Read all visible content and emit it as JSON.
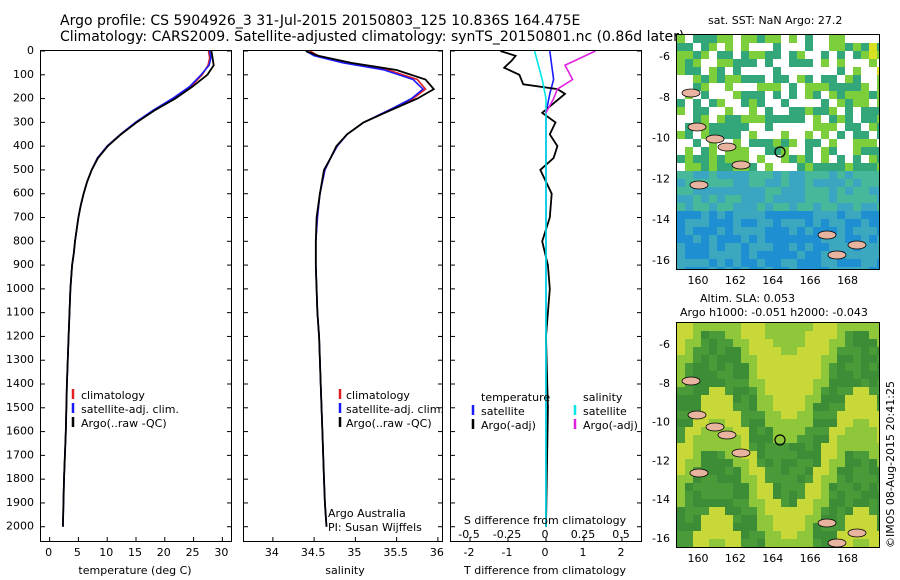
{
  "title": {
    "line1": "Argo profile: CS 5904926_3 31-Jul-2015 20150803_125 10.836S 164.475E",
    "line2": "Climatology: CARS2009. Satellite-adjusted climatology: synTS_20150801.nc (0.86d later)"
  },
  "colors": {
    "climatology": "#e02020",
    "satellite": "#1a1aff",
    "argo": "#000000",
    "sal_sat": "#00e5e5",
    "sal_argo": "#e020e0"
  },
  "depth_axis": {
    "ticks": [
      0,
      100,
      200,
      300,
      400,
      500,
      600,
      700,
      800,
      900,
      1000,
      1100,
      1200,
      1300,
      1400,
      1500,
      1600,
      1700,
      1800,
      1900,
      2000
    ],
    "range": [
      0,
      2060
    ]
  },
  "chart_data": [
    {
      "type": "line",
      "xlabel": "temperature (deg C)",
      "ylabel": "",
      "xlim": [
        -1.5,
        31.5
      ],
      "xticks": [
        "0",
        "5",
        "10",
        "15",
        "20",
        "25",
        "30"
      ],
      "series": [
        {
          "name": "climatology",
          "color": "#e02020",
          "x": [
            27.6,
            27.8,
            27.5,
            26.5,
            24.5,
            21.5,
            18,
            15,
            12.3,
            10,
            8.3,
            7.3,
            6.5,
            5.9,
            5.4,
            5,
            4.7,
            4.4,
            4.2,
            3.9,
            3.6,
            3.3,
            3,
            2.8,
            2.5,
            2.3
          ],
          "y": [
            0,
            30,
            60,
            100,
            150,
            200,
            250,
            300,
            350,
            400,
            450,
            500,
            550,
            600,
            650,
            700,
            750,
            800,
            850,
            900,
            1000,
            1200,
            1400,
            1600,
            1800,
            2000
          ]
        },
        {
          "name": "satellite-adj. clim.",
          "color": "#1a1aff",
          "x": [
            27.8,
            28,
            27.7,
            26.3,
            24.3,
            21.3,
            17.9,
            14.9,
            12.3,
            10,
            8.3,
            7.3,
            6.5,
            5.9,
            5.4,
            5,
            4.7,
            4.4,
            4.2,
            3.9,
            3.6,
            3.3,
            3,
            2.8,
            2.5,
            2.3
          ],
          "y": [
            0,
            30,
            60,
            100,
            150,
            200,
            250,
            300,
            350,
            400,
            450,
            500,
            550,
            600,
            650,
            700,
            750,
            800,
            850,
            900,
            1000,
            1200,
            1400,
            1600,
            1800,
            2000
          ]
        },
        {
          "name": "Argo(..raw -QC)",
          "color": "#000000",
          "x": [
            28.1,
            28.3,
            28.5,
            27.4,
            24.8,
            21.8,
            18.2,
            15.1,
            12.4,
            10.1,
            8.4,
            7.3,
            6.5,
            5.9,
            5.4,
            5,
            4.7,
            4.4,
            4.2,
            3.9,
            3.6,
            3.3,
            3,
            2.8,
            2.5,
            2.3
          ],
          "y": [
            0,
            30,
            60,
            100,
            150,
            200,
            250,
            300,
            350,
            400,
            450,
            500,
            550,
            600,
            650,
            700,
            750,
            800,
            850,
            900,
            1000,
            1200,
            1400,
            1600,
            1800,
            2000
          ]
        }
      ]
    },
    {
      "type": "line",
      "xlabel": "salinity",
      "ylabel": "",
      "xlim": [
        33.65,
        36.05
      ],
      "xticks": [
        "34",
        "34.5",
        "35",
        "35.5",
        "36"
      ],
      "series": [
        {
          "name": "climatology",
          "color": "#e02020",
          "x": [
            34.45,
            34.55,
            34.9,
            35.4,
            35.75,
            35.85,
            35.7,
            35.4,
            35.1,
            34.9,
            34.78,
            34.7,
            34.63,
            34.57,
            34.54,
            34.52,
            34.52,
            34.53,
            34.54,
            34.56,
            34.58,
            34.6,
            34.62,
            34.63,
            34.65
          ],
          "y": [
            0,
            20,
            50,
            80,
            120,
            160,
            200,
            250,
            300,
            350,
            400,
            450,
            500,
            600,
            700,
            800,
            900,
            1000,
            1100,
            1200,
            1400,
            1600,
            1800,
            1900,
            2000
          ]
        },
        {
          "name": "satellite-adj. clim.",
          "color": "#1a1aff",
          "x": [
            34.4,
            34.5,
            34.85,
            35.35,
            35.7,
            35.82,
            35.68,
            35.4,
            35.1,
            34.9,
            34.78,
            34.7,
            34.63,
            34.57,
            34.54,
            34.52,
            34.52,
            34.53,
            34.54,
            34.56,
            34.58,
            34.6,
            34.62,
            34.63,
            34.65
          ],
          "y": [
            0,
            20,
            50,
            80,
            120,
            160,
            200,
            250,
            300,
            350,
            400,
            450,
            500,
            600,
            700,
            800,
            900,
            1000,
            1100,
            1200,
            1400,
            1600,
            1800,
            1900,
            2000
          ]
        },
        {
          "name": "Argo(..raw -QC)",
          "color": "#000000",
          "x": [
            34.4,
            34.55,
            34.95,
            35.5,
            35.85,
            35.95,
            35.75,
            35.42,
            35.1,
            34.9,
            34.77,
            34.7,
            34.62,
            34.57,
            34.53,
            34.52,
            34.52,
            34.53,
            34.54,
            34.56,
            34.58,
            34.6,
            34.62,
            34.63,
            34.65
          ],
          "y": [
            0,
            20,
            50,
            80,
            120,
            160,
            200,
            250,
            300,
            350,
            400,
            450,
            500,
            600,
            700,
            800,
            900,
            1000,
            1100,
            1200,
            1400,
            1600,
            1800,
            1900,
            2000
          ]
        }
      ],
      "annotations": [
        "Argo Australia",
        "PI: Susan Wijffels"
      ]
    },
    {
      "type": "line",
      "xlabel": "T difference from climatology",
      "xlabel_top": "S difference from climatology",
      "xlim": [
        -2.5,
        2.5
      ],
      "xticks": [
        "-2",
        "-1",
        "0",
        "1",
        "2"
      ],
      "s_ticks": [
        "-0.5",
        "-0.25",
        "0",
        "0.25",
        "0.5"
      ],
      "series": [
        {
          "name": "satellite",
          "group": "temperature",
          "color": "#1a1aff",
          "x": [
            0.1,
            0.15,
            0.2,
            0.1,
            0.0,
            0.0,
            0.0,
            0.0
          ],
          "y": [
            0,
            60,
            120,
            180,
            260,
            400,
            1000,
            2000
          ]
        },
        {
          "name": "Argo(-adj)",
          "group": "temperature",
          "color": "#000000",
          "x": [
            -1.2,
            -0.8,
            -0.9,
            -1.1,
            -0.7,
            -0.6,
            0.3,
            0.5,
            0.2,
            -0.1,
            0.25,
            0.1,
            0.3,
            0.2,
            -0.15,
            0.15,
            0.1,
            -0.1,
            0.05,
            0.1,
            0.0,
            0.05,
            0.0
          ],
          "y": [
            0,
            20,
            40,
            70,
            100,
            140,
            160,
            180,
            220,
            260,
            300,
            350,
            400,
            450,
            500,
            600,
            700,
            800,
            900,
            1000,
            1200,
            1500,
            2000
          ]
        },
        {
          "name": "satellite",
          "group": "salinity",
          "color": "#00e5e5",
          "x": [
            -0.3,
            -0.2,
            -0.1,
            0.0,
            0.0,
            0.0,
            0.0
          ],
          "y": [
            0,
            60,
            120,
            200,
            400,
            1000,
            2000
          ]
        },
        {
          "name": "Argo(-adj)",
          "group": "salinity",
          "color": "#e020e0",
          "x": [
            1.3,
            0.9,
            0.5,
            0.7,
            0.3,
            0.2,
            0.0
          ],
          "y": [
            0,
            30,
            60,
            120,
            160,
            200,
            260
          ]
        }
      ]
    }
  ],
  "legend1": {
    "items": [
      "climatology",
      "satellite-adj. clim.",
      "Argo(..raw -QC)"
    ]
  },
  "legend2": {
    "items": [
      "climatology",
      "satellite-adj. clim.",
      "Argo(..raw -QC)"
    ]
  },
  "legend3": {
    "temperature": "temperature",
    "salinity": "salinity",
    "left": [
      "satellite",
      "Argo(-adj)"
    ],
    "right": [
      "satellite",
      "Argo(-adj)"
    ]
  },
  "map1": {
    "title": "sat. SST: NaN Argo: 27.2",
    "lat_ticks": [
      "-6",
      "-8",
      "-10",
      "-12",
      "-14",
      "-16"
    ],
    "lon_ticks": [
      "160",
      "162",
      "164",
      "166",
      "168"
    ]
  },
  "map2": {
    "title1": "Altim. SLA: 0.053",
    "title2": "Argo h1000: -0.051 h2000: -0.043",
    "lat_ticks": [
      "-6",
      "-8",
      "-10",
      "-12",
      "-14",
      "-16"
    ],
    "lon_ticks": [
      "160",
      "162",
      "164",
      "166",
      "168"
    ]
  },
  "credit": "©IMOS 08-Aug-2015 20:41:25",
  "annotations": {
    "a1": "Argo Australia",
    "a2": "PI: Susan Wijffels"
  }
}
